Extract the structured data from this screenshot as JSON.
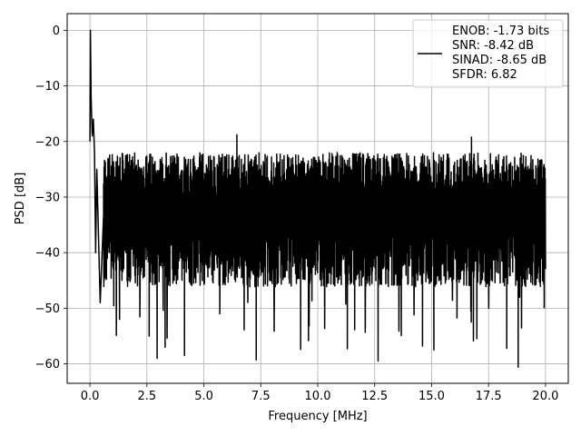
{
  "chart_data": {
    "type": "line",
    "xlabel": "Frequency [MHz]",
    "ylabel": "PSD [dB]",
    "xlim": [
      -1.0,
      21.0
    ],
    "ylim": [
      -63.5,
      3.0
    ],
    "xticks": [
      0.0,
      2.5,
      5.0,
      7.5,
      10.0,
      12.5,
      15.0,
      17.5,
      20.0
    ],
    "xtick_labels": [
      "0.0",
      "2.5",
      "5.0",
      "7.5",
      "10.0",
      "12.5",
      "15.0",
      "17.5",
      "20.0"
    ],
    "yticks": [
      0,
      -10,
      -20,
      -30,
      -40,
      -50,
      -60
    ],
    "ytick_labels": [
      "0",
      "−10",
      "−20",
      "−30",
      "−40",
      "−50",
      "−60"
    ],
    "grid": true,
    "legend_position": "top-right",
    "series": [
      {
        "name": "ENOB: -1.73 bits\nSNR: -8.42 dB\nSINAD: -8.65 dB\nSFDR: 6.82",
        "color": "#000000",
        "description_points": [
          [
            0.0,
            -20.0
          ],
          [
            0.02,
            0.0
          ],
          [
            0.05,
            -12.0
          ],
          [
            0.1,
            -19.0
          ],
          [
            0.15,
            -16.0
          ],
          [
            0.2,
            -22.0
          ],
          [
            0.25,
            -40.0
          ],
          [
            0.3,
            -25.0
          ],
          [
            0.45,
            -49.0
          ],
          [
            0.6,
            -33.0
          ]
        ],
        "envelope": {
          "x_start": 0.0,
          "x_end": 20.0,
          "typical_top": -22,
          "typical_bottom": -45,
          "notable_deep_dips": [
            {
              "x": 1.3,
              "y": -52.0
            },
            {
              "x": 2.6,
              "y": -55.0
            },
            {
              "x": 2.95,
              "y": -59.0
            },
            {
              "x": 3.3,
              "y": -57.0
            },
            {
              "x": 4.15,
              "y": -58.5
            },
            {
              "x": 5.7,
              "y": -51.0
            },
            {
              "x": 7.3,
              "y": -59.3
            },
            {
              "x": 9.25,
              "y": -57.4
            },
            {
              "x": 11.3,
              "y": -57.3
            },
            {
              "x": 12.65,
              "y": -59.5
            },
            {
              "x": 14.6,
              "y": -56.8
            },
            {
              "x": 15.1,
              "y": -57.5
            },
            {
              "x": 18.3,
              "y": -57.2
            },
            {
              "x": 18.8,
              "y": -60.6
            }
          ],
          "notable_peaks": [
            {
              "x": 0.02,
              "y": 0.0
            },
            {
              "x": 6.45,
              "y": -18.8
            },
            {
              "x": 16.75,
              "y": -19.2
            }
          ]
        },
        "sample_count": 2048
      }
    ],
    "legend_entries": [
      "ENOB: -1.73 bits",
      "SNR: -8.42 dB",
      "SINAD: -8.65 dB",
      "SFDR: 6.82"
    ]
  }
}
